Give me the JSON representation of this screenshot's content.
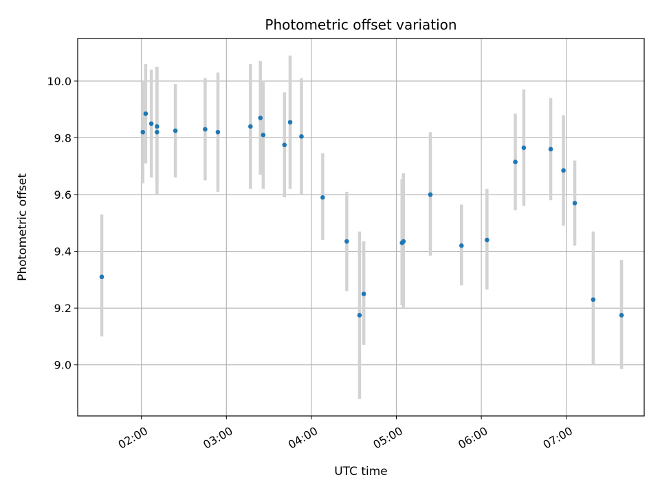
{
  "chart_data": {
    "type": "scatter",
    "title": "Photometric offset variation",
    "xlabel": "UTC time",
    "ylabel": "Photometric offset",
    "xlim": [
      "01:15",
      "07:55"
    ],
    "ylim": [
      8.82,
      10.15
    ],
    "x_ticks": [
      "02:00",
      "03:00",
      "04:00",
      "05:00",
      "06:00",
      "07:00"
    ],
    "y_ticks": [
      "9.0",
      "9.2",
      "9.4",
      "9.6",
      "9.8",
      "10.0"
    ],
    "y_tick_values": [
      9.0,
      9.2,
      9.4,
      9.6,
      9.8,
      10.0
    ],
    "grid": true,
    "colors": {
      "marker": "#1f77b4",
      "errorbar": "#d3d3d3",
      "grid": "#b0b0b0"
    },
    "points": [
      {
        "x": "01:32",
        "y": 9.31,
        "y_low": 9.1,
        "y_high": 9.53
      },
      {
        "x": "02:01",
        "y": 9.82,
        "y_low": 9.64,
        "y_high": 10.0
      },
      {
        "x": "02:03",
        "y": 9.885,
        "y_low": 9.71,
        "y_high": 10.06
      },
      {
        "x": "02:07",
        "y": 9.85,
        "y_low": 9.66,
        "y_high": 10.04
      },
      {
        "x": "02:11",
        "y": 9.82,
        "y_low": 9.6,
        "y_high": 10.05
      },
      {
        "x": "02:11",
        "y": 9.84,
        "y_low": 9.63,
        "y_high": 10.05
      },
      {
        "x": "02:24",
        "y": 9.825,
        "y_low": 9.66,
        "y_high": 9.99
      },
      {
        "x": "02:45",
        "y": 9.83,
        "y_low": 9.65,
        "y_high": 10.01
      },
      {
        "x": "02:54",
        "y": 9.82,
        "y_low": 9.61,
        "y_high": 10.03
      },
      {
        "x": "03:17",
        "y": 9.84,
        "y_low": 9.62,
        "y_high": 10.06
      },
      {
        "x": "03:24",
        "y": 9.87,
        "y_low": 9.67,
        "y_high": 10.07
      },
      {
        "x": "03:26",
        "y": 9.81,
        "y_low": 9.62,
        "y_high": 10.0
      },
      {
        "x": "03:41",
        "y": 9.775,
        "y_low": 9.59,
        "y_high": 9.96
      },
      {
        "x": "03:45",
        "y": 9.855,
        "y_low": 9.62,
        "y_high": 10.09
      },
      {
        "x": "03:53",
        "y": 9.805,
        "y_low": 9.6,
        "y_high": 10.01
      },
      {
        "x": "04:08",
        "y": 9.59,
        "y_low": 9.44,
        "y_high": 9.745
      },
      {
        "x": "04:25",
        "y": 9.435,
        "y_low": 9.26,
        "y_high": 9.61
      },
      {
        "x": "04:34",
        "y": 9.175,
        "y_low": 8.88,
        "y_high": 9.47
      },
      {
        "x": "04:37",
        "y": 9.25,
        "y_low": 9.07,
        "y_high": 9.435
      },
      {
        "x": "05:04",
        "y": 9.43,
        "y_low": 9.21,
        "y_high": 9.655
      },
      {
        "x": "05:05",
        "y": 9.435,
        "y_low": 9.2,
        "y_high": 9.675
      },
      {
        "x": "05:24",
        "y": 9.6,
        "y_low": 9.385,
        "y_high": 9.82
      },
      {
        "x": "05:46",
        "y": 9.42,
        "y_low": 9.28,
        "y_high": 9.565
      },
      {
        "x": "06:04",
        "y": 9.44,
        "y_low": 9.265,
        "y_high": 9.62
      },
      {
        "x": "06:24",
        "y": 9.715,
        "y_low": 9.545,
        "y_high": 9.885
      },
      {
        "x": "06:30",
        "y": 9.765,
        "y_low": 9.56,
        "y_high": 9.97
      },
      {
        "x": "06:49",
        "y": 9.76,
        "y_low": 9.58,
        "y_high": 9.94
      },
      {
        "x": "06:58",
        "y": 9.685,
        "y_low": 9.49,
        "y_high": 9.88
      },
      {
        "x": "07:06",
        "y": 9.57,
        "y_low": 9.42,
        "y_high": 9.72
      },
      {
        "x": "07:19",
        "y": 9.23,
        "y_low": 9.0,
        "y_high": 9.47
      },
      {
        "x": "07:39",
        "y": 9.175,
        "y_low": 8.985,
        "y_high": 9.37
      }
    ]
  }
}
